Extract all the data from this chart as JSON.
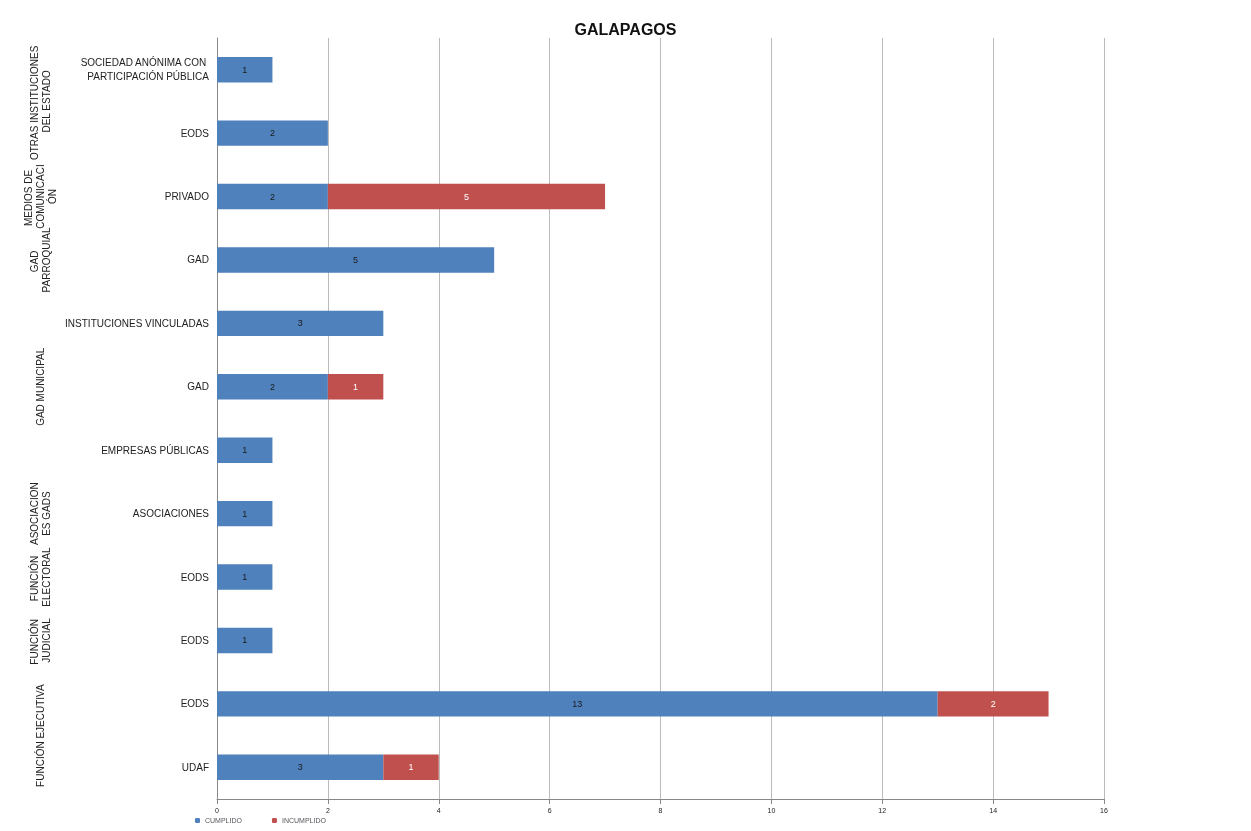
{
  "chart_data": {
    "type": "bar",
    "title": "GALAPAGOS",
    "orientation": "horizontal",
    "stacked": true,
    "categories": [
      "SOCIEDAD ANÓNIMA CON PARTICIPACIÓN PÚBLICA",
      "EODS",
      "PRIVADO",
      "GAD",
      "INSTITUCIONES VINCULADAS",
      "GAD",
      "EMPRESAS PÚBLICAS",
      "ASOCIACIONES",
      "EODS",
      "EODS",
      "EODS",
      "UDAF"
    ],
    "series": [
      {
        "name": "CUMPLIDO",
        "color": "#4f81bd",
        "values": [
          1,
          2,
          2,
          5,
          3,
          2,
          1,
          1,
          1,
          1,
          13,
          3
        ]
      },
      {
        "name": "INCUMPLIDO",
        "color": "#c0504d",
        "values": [
          null,
          null,
          5,
          null,
          null,
          1,
          null,
          null,
          null,
          null,
          2,
          1
        ]
      }
    ],
    "xlim": [
      0,
      16
    ],
    "xticks": [
      0,
      2,
      4,
      6,
      8,
      10,
      12,
      14,
      16
    ],
    "grid": "x",
    "legend": "bottom left",
    "data_labels": true,
    "annotations": [
      "OTRAS INSTITUCIONES DEL ESTADO",
      "MEDIOS DE COMUNICACIÓN",
      "GAD PARROQUIAL",
      "GAD MUNICIPAL",
      "ASOCIACIONES GADS",
      "FUNCIÓN ELECTORAL",
      "FUNCIÓN JUDICIAL",
      "FUNCIÓN EJECUTIVA"
    ]
  }
}
